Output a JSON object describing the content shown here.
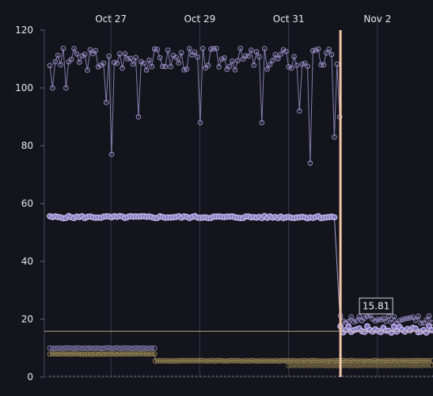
{
  "chart_data": {
    "type": "scatter",
    "x_type": "datetime",
    "xlim": [
      "2024-10-25T12:00",
      "2024-11-03T06:00"
    ],
    "ylim": [
      0,
      120
    ],
    "y_ticks": [
      0,
      20,
      40,
      60,
      80,
      100,
      120
    ],
    "x_ticks": [
      {
        "label": "Oct 27",
        "value": "2024-10-27T00:00"
      },
      {
        "label": "Oct 29",
        "value": "2024-10-29T00:00"
      },
      {
        "label": "Oct 31",
        "value": "2024-10-31T00:00"
      },
      {
        "label": "Nov 2",
        "value": "2024-11-02T00:00"
      }
    ],
    "grid": {
      "x": true,
      "y": false
    },
    "crosshair": {
      "x": "2024-11-01T04:00",
      "y": 15.81,
      "value_label": "15.81"
    },
    "series": [
      {
        "color": "#9a8fc8",
        "marker": "hollow-circle",
        "line": true,
        "segments": [
          {
            "start": "2024-10-25T15:00",
            "end": "2024-11-01T04:00",
            "base": 110,
            "jitter": 4,
            "seed": 3,
            "dips": [
              [
                "2024-10-25T17:00",
                100
              ],
              [
                "2024-10-26T00:00",
                100
              ],
              [
                "2024-10-26T21:00",
                95
              ],
              [
                "2024-10-27T00:00",
                77
              ],
              [
                "2024-10-27T15:00",
                90
              ],
              [
                "2024-10-29T00:00",
                88
              ],
              [
                "2024-10-30T09:00",
                88
              ],
              [
                "2024-10-31T06:00",
                92
              ],
              [
                "2024-10-31T12:00",
                74
              ],
              [
                "2024-11-01T00:00",
                83
              ],
              [
                "2024-11-01T03:00",
                90
              ]
            ]
          },
          {
            "start": "2024-11-01T04:00",
            "end": "2024-11-03T06:00",
            "base": 20,
            "jitter": 1.5,
            "seed": 11,
            "dips": []
          }
        ]
      },
      {
        "color": "#c4b8ec",
        "marker": "filled-circle",
        "line": true,
        "segments": [
          {
            "start": "2024-10-25T15:00",
            "end": "2024-11-01T02:00",
            "base": 55.3,
            "jitter": 0.4,
            "seed": 5,
            "dips": []
          },
          {
            "start": "2024-11-01T04:00",
            "end": "2024-11-03T06:00",
            "base": 16.5,
            "jitter": 1.2,
            "seed": 17,
            "dips": []
          }
        ]
      },
      {
        "color": "#8a80b8",
        "marker": "hollow-circle",
        "line": false,
        "segments": [
          {
            "start": "2024-10-25T15:00",
            "end": "2024-10-28T00:00",
            "base": 10,
            "jitter": 0.1,
            "seed": 7,
            "dips": []
          }
        ]
      },
      {
        "color": "#9c8a55",
        "marker": "hollow-circle",
        "line": true,
        "segments": [
          {
            "start": "2024-10-25T15:00",
            "end": "2024-10-28T00:00",
            "base": 8,
            "jitter": 0.1,
            "seed": 8,
            "dips": []
          },
          {
            "start": "2024-10-28T00:00",
            "end": "2024-11-03T06:00",
            "base": 5.6,
            "jitter": 0.1,
            "seed": 9,
            "dips": []
          }
        ]
      },
      {
        "color": "#7a6a45",
        "marker": "hollow-circle",
        "line": true,
        "segments": [
          {
            "start": "2024-10-31T00:00",
            "end": "2024-11-03T06:00",
            "base": 4,
            "jitter": 0.08,
            "seed": 10,
            "dips": []
          }
        ]
      },
      {
        "color": "#6a6680",
        "marker": "tiny-dot",
        "line": false,
        "segments": [
          {
            "start": "2024-10-25T15:00",
            "end": "2024-11-03T06:00",
            "base": 0,
            "jitter": 0,
            "seed": 1,
            "dips": []
          }
        ]
      }
    ]
  }
}
